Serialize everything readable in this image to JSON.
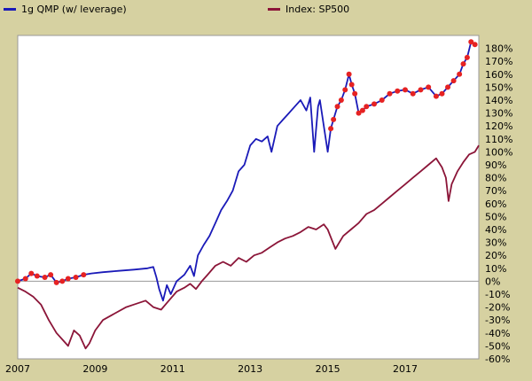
{
  "colors": {
    "background": "#d6d1a1",
    "plot": "#ffffff",
    "strategy": "#1a1ab8",
    "strategy_markers": "#e62222",
    "index": "#8b1538"
  },
  "chart_data": {
    "type": "line",
    "title": "",
    "xlabel": "",
    "ylabel": "",
    "xlim": [
      2007.0,
      2018.9
    ],
    "ylim": [
      -60,
      190
    ],
    "x_ticks": [
      2007,
      2009,
      2011,
      2013,
      2015,
      2017
    ],
    "x_tick_labels": [
      "2007",
      "2009",
      "2011",
      "2013",
      "2015",
      "2017"
    ],
    "y_ticks": [
      180,
      170,
      160,
      150,
      140,
      130,
      120,
      110,
      100,
      90,
      80,
      70,
      60,
      50,
      40,
      30,
      20,
      10,
      0,
      -10,
      -20,
      -30,
      -40,
      -50,
      -60
    ],
    "y_tick_labels": [
      "180%",
      "170%",
      "160%",
      "150%",
      "140%",
      "130%",
      "120%",
      "110%",
      "100%",
      "90%",
      "80%",
      "70%",
      "60%",
      "50%",
      "40%",
      "30%",
      "20%",
      "10%",
      "0%",
      "-10%",
      "-20%",
      "-30%",
      "-40%",
      "-50%",
      "-60%"
    ],
    "grid": true,
    "legend_position": "top",
    "series": [
      {
        "name": "1g QMP (w/ leverage)",
        "color": "#1a1ab8",
        "x": [
          2007.0,
          2007.2,
          2007.35,
          2007.5,
          2007.7,
          2007.85,
          2008.0,
          2008.15,
          2008.3,
          2008.5,
          2008.7,
          2008.9,
          2009.2,
          2009.6,
          2010.0,
          2010.35,
          2010.5,
          2010.58,
          2010.65,
          2010.75,
          2010.85,
          2010.95,
          2011.1,
          2011.3,
          2011.45,
          2011.55,
          2011.65,
          2011.8,
          2011.95,
          2012.1,
          2012.25,
          2012.4,
          2012.55,
          2012.7,
          2012.85,
          2013.0,
          2013.15,
          2013.3,
          2013.45,
          2013.55,
          2013.7,
          2013.85,
          2014.0,
          2014.15,
          2014.3,
          2014.45,
          2014.55,
          2014.65,
          2014.75,
          2014.8,
          2014.9,
          2015.0,
          2015.08,
          2015.15,
          2015.25,
          2015.35,
          2015.45,
          2015.55,
          2015.62,
          2015.7,
          2015.8,
          2015.9,
          2016.0,
          2016.2,
          2016.4,
          2016.6,
          2016.8,
          2017.0,
          2017.2,
          2017.4,
          2017.6,
          2017.8,
          2017.95,
          2018.1,
          2018.25,
          2018.4,
          2018.5,
          2018.6,
          2018.7,
          2018.8
        ],
        "y": [
          0,
          2,
          6,
          4,
          3,
          5,
          -1,
          0,
          2,
          3,
          5,
          6,
          7,
          8,
          9,
          10,
          11,
          3,
          -6,
          -15,
          -3,
          -10,
          0,
          5,
          12,
          4,
          20,
          28,
          35,
          45,
          55,
          62,
          70,
          85,
          90,
          105,
          110,
          108,
          112,
          100,
          120,
          125,
          130,
          135,
          140,
          132,
          142,
          100,
          135,
          140,
          120,
          100,
          118,
          125,
          135,
          140,
          148,
          160,
          152,
          145,
          130,
          132,
          135,
          137,
          140,
          145,
          147,
          148,
          145,
          148,
          150,
          143,
          145,
          150,
          155,
          160,
          168,
          173,
          185,
          183
        ]
      },
      {
        "name": "Index: SP500",
        "color": "#8b1538",
        "x": [
          2007.0,
          2007.2,
          2007.4,
          2007.6,
          2007.8,
          2008.0,
          2008.15,
          2008.3,
          2008.45,
          2008.6,
          2008.75,
          2008.85,
          2009.0,
          2009.2,
          2009.5,
          2009.8,
          2010.0,
          2010.3,
          2010.5,
          2010.7,
          2010.9,
          2011.1,
          2011.3,
          2011.45,
          2011.6,
          2011.75,
          2011.9,
          2012.1,
          2012.3,
          2012.5,
          2012.7,
          2012.9,
          2013.1,
          2013.3,
          2013.5,
          2013.7,
          2013.9,
          2014.1,
          2014.3,
          2014.5,
          2014.7,
          2014.9,
          2015.0,
          2015.2,
          2015.4,
          2015.6,
          2015.8,
          2016.0,
          2016.2,
          2016.4,
          2016.6,
          2016.8,
          2017.0,
          2017.2,
          2017.4,
          2017.6,
          2017.8,
          2017.95,
          2018.05,
          2018.12,
          2018.2,
          2018.35,
          2018.5,
          2018.65,
          2018.8,
          2018.9
        ],
        "y": [
          -5,
          -8,
          -12,
          -18,
          -30,
          -40,
          -45,
          -50,
          -38,
          -42,
          -52,
          -48,
          -38,
          -30,
          -25,
          -20,
          -18,
          -15,
          -20,
          -22,
          -15,
          -8,
          -5,
          -2,
          -6,
          0,
          5,
          12,
          15,
          12,
          18,
          15,
          20,
          22,
          26,
          30,
          33,
          35,
          38,
          42,
          40,
          44,
          40,
          25,
          35,
          40,
          45,
          52,
          55,
          60,
          65,
          70,
          75,
          80,
          85,
          90,
          95,
          88,
          80,
          62,
          75,
          85,
          92,
          98,
          100,
          105
        ]
      }
    ]
  }
}
